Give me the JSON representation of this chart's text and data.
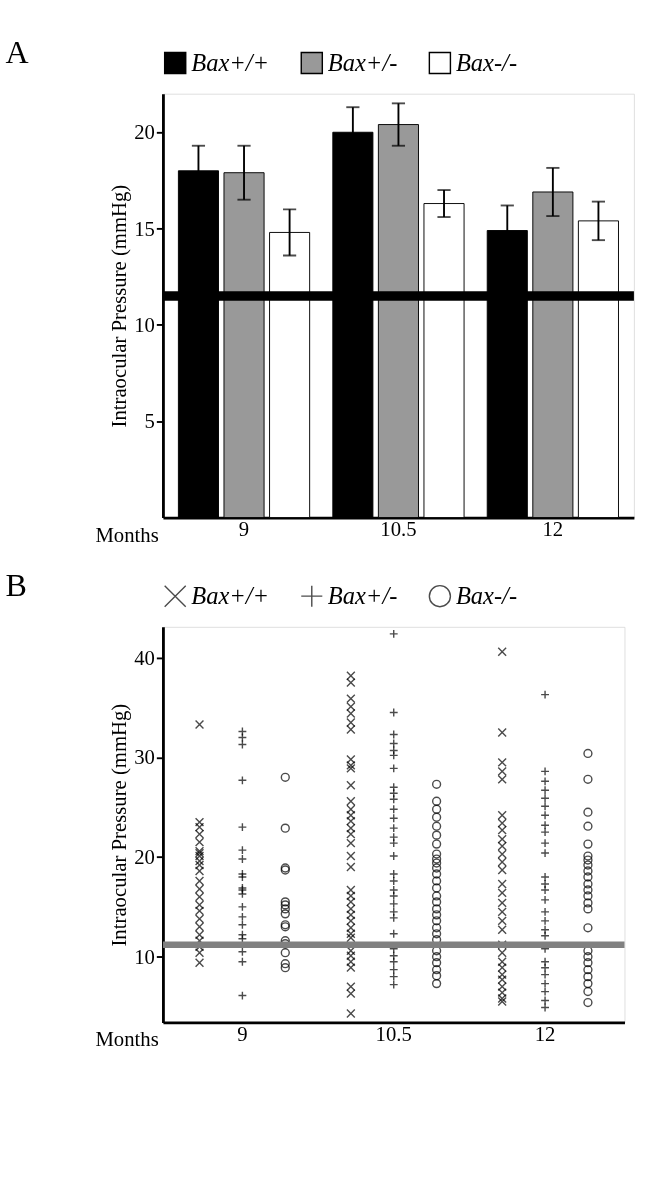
{
  "chart_data": [
    {
      "type": "bar",
      "title": "A",
      "xlabel": "Months",
      "ylabel": "Intraocular Pressure (mmHg)",
      "categories": [
        "9",
        "10.5",
        "12"
      ],
      "legend": "top",
      "ylim": [
        0,
        22
      ],
      "yticks": [
        5,
        10,
        15,
        20
      ],
      "series": [
        {
          "name": "Bax+/+",
          "color": "#000000",
          "values": [
            18.0,
            20.0,
            14.9
          ],
          "errors": [
            1.3,
            1.3,
            1.3
          ]
        },
        {
          "name": "Bax+/-",
          "color": "#999999",
          "values": [
            17.9,
            20.4,
            16.9
          ],
          "errors": [
            1.4,
            1.1,
            1.25
          ]
        },
        {
          "name": "Bax-/-",
          "color": "#ffffff",
          "values": [
            14.8,
            16.3,
            15.4
          ],
          "errors": [
            1.2,
            0.7,
            1.0
          ]
        }
      ],
      "ref_lines": [
        {
          "axis": "y",
          "value": 11.5,
          "color": "#000000"
        }
      ]
    },
    {
      "type": "scatter",
      "title": "B",
      "xlabel": "Months",
      "ylabel": "Intraocular Pressure (mmHg)",
      "categories": [
        "9",
        "10.5",
        "12"
      ],
      "legend": "top",
      "ylim": [
        3.4,
        43.1
      ],
      "yticks": [
        10,
        20,
        30,
        40
      ],
      "series": [
        {
          "name": "Bax+/+",
          "color": "#000000",
          "marker": "x",
          "x": [
            "9",
            "9",
            "9",
            "9",
            "9",
            "9",
            "9",
            "9",
            "9",
            "9",
            "9",
            "9",
            "9",
            "9",
            "9",
            "9",
            "9",
            "9",
            "9",
            "9",
            "9",
            "9",
            "9",
            "10.5",
            "10.5",
            "10.5",
            "10.5",
            "10.5",
            "10.5",
            "10.5",
            "10.5",
            "10.5",
            "10.5",
            "10.5",
            "10.5",
            "10.5",
            "10.5",
            "10.5",
            "10.5",
            "10.5",
            "10.5",
            "10.5",
            "10.5",
            "10.5",
            "10.5",
            "10.5",
            "10.5",
            "10.5",
            "10.5",
            "10.5",
            "10.5",
            "10.5",
            "10.5",
            "10.5",
            "10.5",
            "10.5",
            "10.5",
            "10.5",
            "10.5",
            "12",
            "12",
            "12",
            "12",
            "12",
            "12",
            "12",
            "12",
            "12",
            "12",
            "12",
            "12",
            "12",
            "12",
            "12",
            "12",
            "12",
            "12",
            "12",
            "12",
            "12",
            "12",
            "12",
            "12",
            "12",
            "12",
            "12",
            "12",
            "12"
          ],
          "values": [
            33.3,
            23.5,
            23.0,
            22.3,
            21.5,
            20.6,
            20.4,
            20.1,
            19.6,
            19.2,
            18.6,
            17.6,
            16.8,
            16.0,
            15.2,
            14.6,
            13.8,
            13.0,
            12.2,
            11.6,
            11.0,
            10.4,
            9.4,
            38.2,
            37.5,
            35.9,
            35.1,
            34.4,
            33.5,
            32.8,
            29.8,
            29.2,
            28.9,
            27.2,
            25.6,
            24.8,
            24.2,
            23.6,
            22.9,
            22.3,
            21.4,
            20.1,
            19.0,
            16.7,
            16.1,
            15.5,
            14.8,
            14.2,
            13.6,
            12.9,
            12.3,
            11.9,
            10.6,
            10.1,
            9.5,
            8.9,
            7.0,
            6.3,
            4.3,
            40.6,
            32.5,
            29.5,
            28.6,
            27.8,
            24.2,
            23.4,
            22.7,
            21.8,
            21.1,
            20.3,
            19.5,
            18.7,
            17.3,
            16.4,
            15.4,
            14.5,
            13.6,
            12.7,
            11.2,
            10.4,
            9.5,
            8.9,
            8.2,
            7.7,
            7.0,
            6.4,
            5.8,
            5.5
          ]
        },
        {
          "name": "Bax+/-",
          "color": "#000000",
          "marker": "cross",
          "x": [
            "9",
            "9",
            "9",
            "9",
            "9",
            "9",
            "9",
            "9",
            "9",
            "9",
            "9",
            "9",
            "9",
            "9",
            "9",
            "9",
            "9",
            "9",
            "9",
            "9",
            "10.5",
            "10.5",
            "10.5",
            "10.5",
            "10.5",
            "10.5",
            "10.5",
            "10.5",
            "10.5",
            "10.5",
            "10.5",
            "10.5",
            "10.5",
            "10.5",
            "10.5",
            "10.5",
            "10.5",
            "10.5",
            "10.5",
            "10.5",
            "10.5",
            "10.5",
            "10.5",
            "10.5",
            "10.5",
            "10.5",
            "10.5",
            "10.5",
            "10.5",
            "10.5",
            "12",
            "12",
            "12",
            "12",
            "12",
            "12",
            "12",
            "12",
            "12",
            "12",
            "12",
            "12",
            "12",
            "12",
            "12",
            "12",
            "12",
            "12",
            "12",
            "12",
            "12",
            "12",
            "12",
            "12",
            "12",
            "12",
            "12"
          ],
          "values": [
            32.6,
            32.0,
            31.3,
            27.7,
            23.0,
            20.7,
            19.8,
            18.3,
            18.0,
            16.9,
            16.7,
            16.3,
            15.0,
            14.0,
            13.2,
            12.2,
            11.8,
            10.5,
            9.5,
            6.1,
            42.4,
            34.5,
            32.3,
            31.4,
            30.7,
            30.2,
            28.9,
            27.0,
            26.4,
            25.8,
            24.8,
            23.9,
            22.9,
            22.0,
            21.4,
            20.1,
            18.3,
            17.6,
            16.7,
            16.1,
            15.3,
            14.5,
            13.9,
            12.3,
            10.8,
            10.1,
            9.5,
            8.7,
            8.0,
            7.2,
            36.3,
            28.6,
            27.6,
            26.7,
            25.9,
            25.1,
            24.2,
            23.2,
            22.5,
            21.4,
            20.4,
            18.0,
            17.3,
            16.7,
            15.7,
            14.5,
            13.6,
            12.7,
            12.1,
            10.8,
            9.5,
            8.9,
            8.2,
            7.3,
            6.5,
            5.6,
            4.9
          ]
        },
        {
          "name": "Bax-/-",
          "color": "#000000",
          "marker": "circle",
          "x": [
            "9",
            "9",
            "9",
            "9",
            "9",
            "9",
            "9",
            "9",
            "9",
            "9",
            "9",
            "9",
            "9",
            "9",
            "9",
            "10.5",
            "10.5",
            "10.5",
            "10.5",
            "10.5",
            "10.5",
            "10.5",
            "10.5",
            "10.5",
            "10.5",
            "10.5",
            "10.5",
            "10.5",
            "10.5",
            "10.5",
            "10.5",
            "10.5",
            "10.5",
            "10.5",
            "10.5",
            "10.5",
            "10.5",
            "10.5",
            "10.5",
            "10.5",
            "10.5",
            "10.5",
            "10.5",
            "12",
            "12",
            "12",
            "12",
            "12",
            "12",
            "12",
            "12",
            "12",
            "12",
            "12",
            "12",
            "12",
            "12",
            "12",
            "12",
            "12",
            "12",
            "12",
            "12",
            "12",
            "12",
            "12",
            "12"
          ],
          "values": [
            28.0,
            22.9,
            18.9,
            18.7,
            15.5,
            15.2,
            14.8,
            14.3,
            13.2,
            13.0,
            11.6,
            11.3,
            10.4,
            9.3,
            8.9,
            27.3,
            25.6,
            24.8,
            24.0,
            23.1,
            22.2,
            21.3,
            20.3,
            19.8,
            19.4,
            18.9,
            18.3,
            17.6,
            16.9,
            16.1,
            15.5,
            14.8,
            14.2,
            13.6,
            12.9,
            12.3,
            11.7,
            10.6,
            10.0,
            9.4,
            8.7,
            8.1,
            7.3,
            30.4,
            27.8,
            24.5,
            23.1,
            21.3,
            20.1,
            19.7,
            19.2,
            18.6,
            18.0,
            17.3,
            16.7,
            16.1,
            15.4,
            14.8,
            12.9,
            10.6,
            10.0,
            9.4,
            8.7,
            8.0,
            7.3,
            6.5,
            5.4
          ]
        }
      ],
      "ref_lines": [
        {
          "axis": "y",
          "value": 11.2,
          "color": "#808080"
        }
      ]
    }
  ]
}
